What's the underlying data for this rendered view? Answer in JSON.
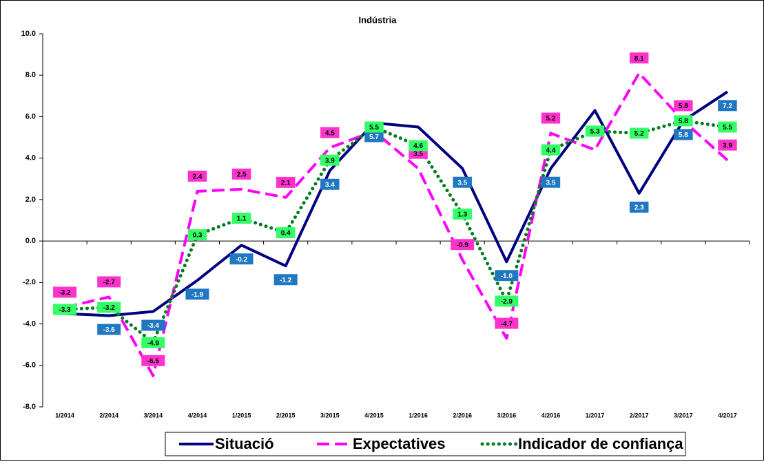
{
  "chart_data": {
    "type": "line",
    "title": "Indústria",
    "categories": [
      "1/2014",
      "2/2014",
      "3/2014",
      "4/2014",
      "1/2015",
      "2/2015",
      "3/2015",
      "4/2015",
      "1/2016",
      "2/2016",
      "3/2016",
      "4/2016",
      "1/2017",
      "2/2017",
      "3/2017",
      "4/2017"
    ],
    "ylim": [
      -8,
      10
    ],
    "yticks": [
      {
        "value": -8,
        "label": "-8.0"
      },
      {
        "value": -6,
        "label": "-6.0"
      },
      {
        "value": -4,
        "label": "-4.0"
      },
      {
        "value": -2,
        "label": "-2.0"
      },
      {
        "value": 0,
        "label": "0.0"
      },
      {
        "value": 2,
        "label": "2.0"
      },
      {
        "value": 4,
        "label": "4.0"
      },
      {
        "value": 6,
        "label": "6.0"
      },
      {
        "value": 8,
        "label": "8.0"
      },
      {
        "value": 10,
        "label": "10.0"
      }
    ],
    "series": [
      {
        "name": "Situació",
        "color": "#000080",
        "dash": "solid",
        "label_box_color": "#1f78c1",
        "label_text_color": "#ffffff",
        "values": [
          -3.5,
          -3.6,
          -3.4,
          -1.9,
          -0.2,
          -1.2,
          3.4,
          5.7,
          5.5,
          3.5,
          -1.0,
          3.5,
          6.3,
          2.3,
          5.8,
          7.2
        ],
        "value_labels": [
          null,
          "-3.6",
          "-3.4",
          "-1.9",
          "-0.2",
          "-1.2",
          "3.4",
          "5.7",
          null,
          "3.5",
          "-1.0",
          "3.5",
          null,
          "2.3",
          "5.8",
          "7.2"
        ]
      },
      {
        "name": "Expectatives",
        "color": "#ff00ff",
        "dash": "dashed",
        "label_box_color": "#ff33cc",
        "label_text_color": "#000000",
        "values": [
          -3.2,
          -2.7,
          -6.5,
          2.4,
          2.5,
          2.1,
          4.5,
          5.3,
          3.5,
          -0.9,
          -4.7,
          5.2,
          4.4,
          8.1,
          5.8,
          3.9
        ],
        "value_labels": [
          "-3.2",
          "-2.7",
          "-6.5",
          "2.4",
          "2.5",
          "2.1",
          "4.5",
          null,
          "3.5",
          "-0.9",
          "-4.7",
          "5.2",
          null,
          "8.1",
          "5.8",
          "3.9"
        ]
      },
      {
        "name": "Indicador de confiança",
        "color": "#007a1f",
        "dash": "dotted",
        "label_box_color": "#33ff66",
        "label_text_color": "#000000",
        "values": [
          -3.3,
          -3.2,
          -4.9,
          0.3,
          1.1,
          0.4,
          3.9,
          5.5,
          4.6,
          1.3,
          -2.9,
          4.4,
          5.3,
          5.2,
          5.8,
          5.5
        ],
        "value_labels": [
          "-3.3",
          "-3.2",
          "-4.9",
          "0.3",
          "1.1",
          "0.4",
          "3.9",
          "5.5",
          "4.6",
          "1.3",
          "-2.9",
          "4.4",
          "5.3",
          "5.2",
          "5.8",
          "5.5"
        ]
      }
    ]
  }
}
